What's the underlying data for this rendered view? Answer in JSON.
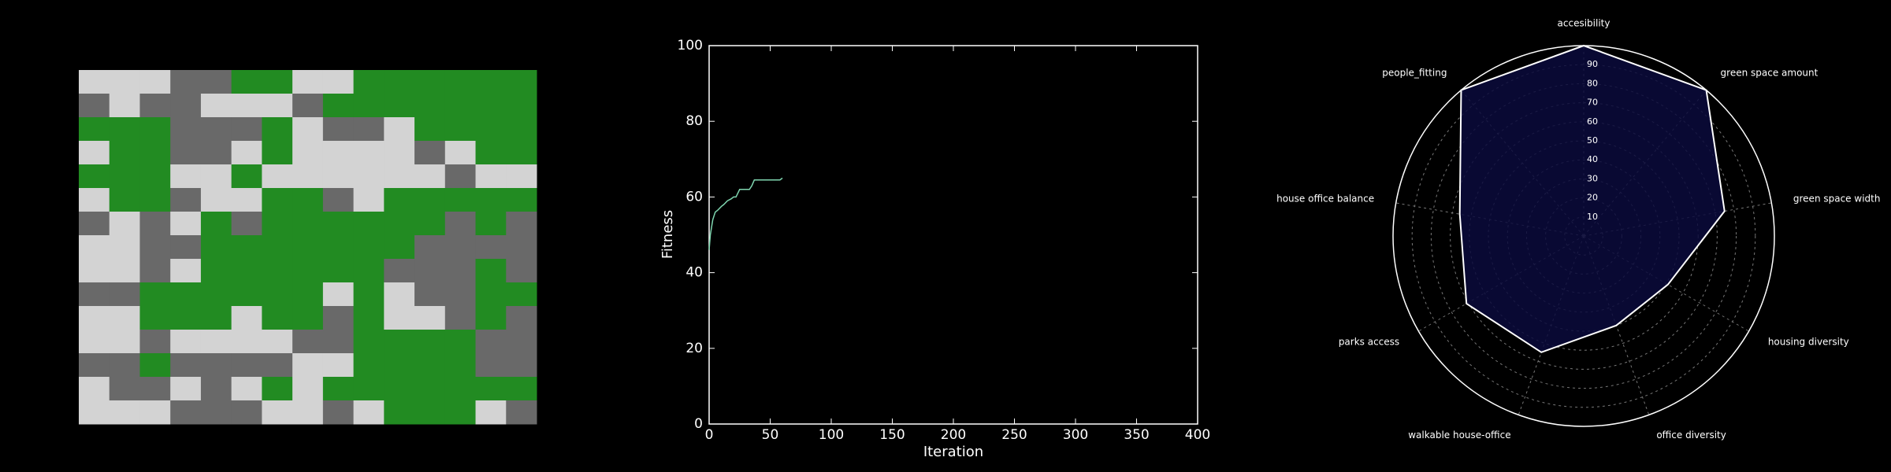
{
  "chart_data": [
    {
      "type": "grid",
      "palette": [
        "#d3d3d3",
        "#696969",
        "#228b22"
      ],
      "cells": [
        [
          0,
          0,
          0,
          1,
          1,
          2,
          2,
          0,
          0,
          2,
          2,
          2,
          2,
          2,
          2
        ],
        [
          1,
          0,
          1,
          1,
          0,
          0,
          0,
          1,
          2,
          2,
          2,
          2,
          2,
          2,
          2
        ],
        [
          2,
          2,
          2,
          1,
          1,
          1,
          2,
          0,
          1,
          1,
          0,
          2,
          2,
          2,
          2
        ],
        [
          0,
          2,
          2,
          1,
          1,
          0,
          2,
          0,
          0,
          0,
          0,
          1,
          0,
          2,
          2
        ],
        [
          2,
          2,
          2,
          0,
          0,
          2,
          0,
          0,
          0,
          0,
          0,
          0,
          1,
          0,
          0
        ],
        [
          0,
          2,
          2,
          1,
          0,
          0,
          2,
          2,
          1,
          0,
          2,
          2,
          2,
          2,
          2
        ],
        [
          1,
          0,
          1,
          0,
          2,
          1,
          2,
          2,
          2,
          2,
          2,
          2,
          1,
          2,
          1
        ],
        [
          0,
          0,
          1,
          1,
          2,
          2,
          2,
          2,
          2,
          2,
          2,
          1,
          1,
          1,
          1
        ],
        [
          0,
          0,
          1,
          0,
          2,
          2,
          2,
          2,
          2,
          2,
          1,
          1,
          1,
          2,
          1
        ],
        [
          1,
          1,
          2,
          2,
          2,
          2,
          2,
          2,
          0,
          2,
          0,
          1,
          1,
          2,
          2
        ],
        [
          0,
          0,
          2,
          2,
          2,
          0,
          2,
          2,
          1,
          2,
          0,
          0,
          1,
          2,
          1
        ],
        [
          0,
          0,
          1,
          0,
          0,
          0,
          0,
          1,
          1,
          2,
          2,
          2,
          2,
          1,
          1
        ],
        [
          1,
          1,
          2,
          1,
          1,
          1,
          1,
          0,
          0,
          2,
          2,
          2,
          2,
          1,
          1
        ],
        [
          0,
          1,
          1,
          0,
          1,
          0,
          2,
          0,
          2,
          2,
          2,
          2,
          2,
          2,
          2
        ],
        [
          0,
          0,
          0,
          1,
          1,
          1,
          0,
          0,
          1,
          0,
          2,
          2,
          2,
          0,
          1
        ]
      ]
    },
    {
      "type": "line",
      "x_label": "Iteration",
      "y_label": "Fitness",
      "x": [
        0,
        1,
        2,
        3,
        4,
        5,
        7,
        10,
        12,
        15,
        18,
        20,
        22,
        25,
        30,
        33,
        35,
        37,
        40,
        45,
        50,
        55,
        58,
        60
      ],
      "series": [
        {
          "color": "#7fd6b0",
          "values": [
            46,
            50,
            52,
            54,
            55,
            56,
            56.5,
            57.5,
            58,
            59,
            59.5,
            60,
            60,
            62,
            62,
            62,
            63,
            64.5,
            64.5,
            64.5,
            64.5,
            64.5,
            64.5,
            65
          ]
        }
      ],
      "xlim": [
        0,
        400
      ],
      "xticks": [
        0,
        50,
        100,
        150,
        200,
        250,
        300,
        350,
        400
      ],
      "ylim": [
        0,
        100
      ],
      "yticks": [
        0,
        20,
        40,
        60,
        80,
        100
      ]
    },
    {
      "type": "radar",
      "categories": [
        "accesibility",
        "green space amount",
        "green space width",
        "housing diversity",
        "office diversity",
        "walkable house-office",
        "parks access",
        "house office balance",
        "people_fitting"
      ],
      "values": [
        100,
        100,
        75,
        51,
        50,
        65,
        71,
        66,
        100
      ],
      "color": "#0a0a3c",
      "line_color": "#ffffff",
      "rlim": [
        0,
        100
      ],
      "rticks": [
        10,
        20,
        30,
        40,
        50,
        60,
        70,
        80,
        90
      ]
    }
  ]
}
